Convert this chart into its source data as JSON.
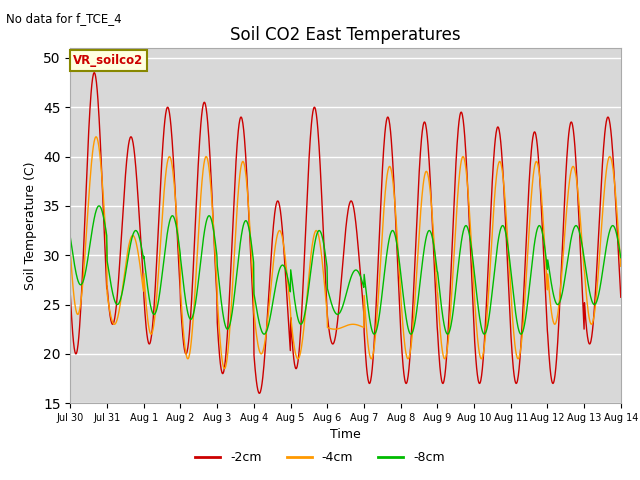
{
  "title": "Soil CO2 East Temperatures",
  "subtitle": "No data for f_TCE_4",
  "xlabel": "Time",
  "ylabel": "Soil Temperature (C)",
  "ylim": [
    15,
    51
  ],
  "yticks": [
    15,
    20,
    25,
    30,
    35,
    40,
    45,
    50
  ],
  "legend_label": "VR_soilco2",
  "line_labels": [
    "-2cm",
    "-4cm",
    "-8cm"
  ],
  "line_colors": [
    "#cc0000",
    "#ff9900",
    "#00bb00"
  ],
  "bg_color": "#d8d8d8",
  "xtick_labels": [
    "Jul 30",
    "Jul 31",
    "Aug 1",
    "Aug 2",
    "Aug 3",
    "Aug 4",
    "Aug 5",
    "Aug 6",
    "Aug 7",
    "Aug 8",
    "Aug 9",
    "Aug 10",
    "Aug 11",
    "Aug 12",
    "Aug 13",
    "Aug 14"
  ],
  "xtick_positions": [
    0,
    1,
    2,
    3,
    4,
    5,
    6,
    7,
    8,
    9,
    10,
    11,
    12,
    13,
    14,
    15
  ],
  "peaks_2cm": [
    48.5,
    42.0,
    45.0,
    45.5,
    44.0,
    35.5,
    45.0,
    35.5,
    44.0,
    43.5,
    44.5,
    43.0,
    42.5,
    43.5,
    44.0
  ],
  "troughs_2cm": [
    20.0,
    23.0,
    21.0,
    20.0,
    18.0,
    16.0,
    18.5,
    21.0,
    17.0,
    17.0,
    17.0,
    17.0,
    17.0,
    17.0,
    21.0
  ],
  "peaks_4cm": [
    42.0,
    32.0,
    40.0,
    40.0,
    39.5,
    32.5,
    32.5,
    23.0,
    39.0,
    38.5,
    40.0,
    39.5,
    39.5,
    39.0,
    40.0
  ],
  "troughs_4cm": [
    24.0,
    23.0,
    22.0,
    19.5,
    18.5,
    20.0,
    19.5,
    22.5,
    19.5,
    19.5,
    19.5,
    19.5,
    19.5,
    23.0,
    23.0
  ],
  "peaks_8cm": [
    35.0,
    32.5,
    34.0,
    34.0,
    33.5,
    29.0,
    32.5,
    28.5,
    32.5,
    32.5,
    33.0,
    33.0,
    33.0,
    33.0,
    33.0
  ],
  "troughs_8cm": [
    27.0,
    25.0,
    24.0,
    23.5,
    22.5,
    22.0,
    23.0,
    24.0,
    22.0,
    22.0,
    22.0,
    22.0,
    22.0,
    25.0,
    25.0
  ],
  "peak_phase_2cm": 0.65,
  "peak_phase_4cm": 0.7,
  "peak_phase_8cm": 0.78
}
